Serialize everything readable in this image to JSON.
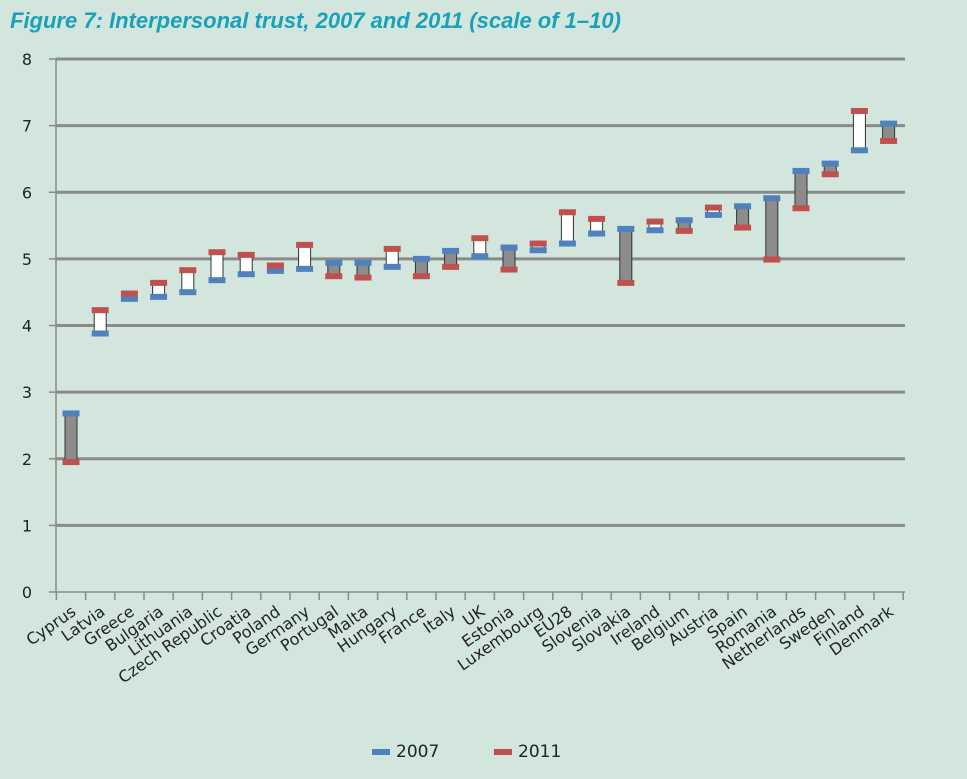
{
  "chart_data": {
    "type": "range-bar",
    "title": "Figure 7: Interpersonal trust, 2007 and 2011 (scale of 1–10)",
    "xlabel": "",
    "ylabel": "",
    "ylim": [
      0,
      8
    ],
    "yticks": [
      "0",
      "1",
      "2",
      "3",
      "4",
      "5",
      "6",
      "7",
      "8"
    ],
    "grid": true,
    "legend_position": "bottom-center",
    "categories": [
      "Cyprus",
      "Latvia",
      "Greece",
      "Bulgaria",
      "Lithuania",
      "Czech Republic",
      "Croatia",
      "Poland",
      "Germany",
      "Portugal",
      "Malta",
      "Hungary",
      "France",
      "Italy",
      "UK",
      "Estonia",
      "Luxembourg",
      "EU28",
      "Slovenia",
      "Slovakia",
      "Ireland",
      "Belgium",
      "Austria",
      "Spain",
      "Romania",
      "Netherlands",
      "Sweden",
      "Finland",
      "Denmark"
    ],
    "series": [
      {
        "name": "2007",
        "color": "#4f81bd",
        "values": [
          2.68,
          3.88,
          4.4,
          4.43,
          4.5,
          4.68,
          4.77,
          4.82,
          4.85,
          4.94,
          4.94,
          4.88,
          5.0,
          5.12,
          5.04,
          5.17,
          5.13,
          5.23,
          5.38,
          5.45,
          5.43,
          5.58,
          5.66,
          5.79,
          5.91,
          6.32,
          6.43,
          6.63,
          7.03
        ]
      },
      {
        "name": "2011",
        "color": "#c0504d",
        "values": [
          1.95,
          4.23,
          4.48,
          4.64,
          4.83,
          5.1,
          5.06,
          4.9,
          5.21,
          4.74,
          4.72,
          5.15,
          4.74,
          4.88,
          5.31,
          4.84,
          5.23,
          5.7,
          5.6,
          4.64,
          5.56,
          5.42,
          5.77,
          5.47,
          4.99,
          5.76,
          6.27,
          7.22,
          6.77
        ]
      }
    ]
  }
}
